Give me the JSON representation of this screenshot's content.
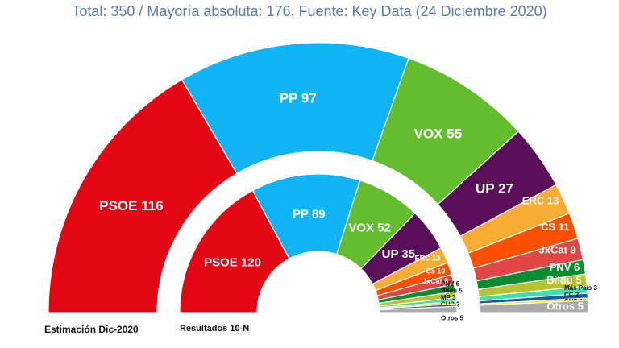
{
  "chart_data": {
    "type": "parliament-donut",
    "title": "Total: 350 / Mayoría absoluta: 176. Fuente: Key Data (24 Diciembre 2020)",
    "total_seats": 350,
    "majority": 176,
    "rings": [
      {
        "name": "Estimación Dic-2020",
        "parties": [
          {
            "label": "PSOE",
            "value": 116,
            "color": "#e30613"
          },
          {
            "label": "PP",
            "value": 97,
            "color": "#0fb4f5"
          },
          {
            "label": "VOX",
            "value": 55,
            "color": "#63be2f"
          },
          {
            "label": "UP",
            "value": 27,
            "color": "#5a0f5a"
          },
          {
            "label": "ERC",
            "value": 13,
            "color": "#f8ac33"
          },
          {
            "label": "CS",
            "value": 11,
            "color": "#fa5000"
          },
          {
            "label": "JxCat",
            "value": 9,
            "color": "#e04646"
          },
          {
            "label": "PNV",
            "value": 6,
            "color": "#0a8c2f"
          },
          {
            "label": "Bildu",
            "value": 5,
            "color": "#b5c42e"
          },
          {
            "label": "Más País",
            "value": 3,
            "color": "#3fe0a8"
          },
          {
            "label": "CC",
            "value": 2,
            "color": "#1a5aa8"
          },
          {
            "label": "CUP",
            "value": 1,
            "color": "#ffe100"
          },
          {
            "label": "Otros",
            "value": 5,
            "color": "#aaaaaa"
          }
        ]
      },
      {
        "name": "Resultados 10-N",
        "parties": [
          {
            "label": "PSOE",
            "value": 120,
            "color": "#e30613"
          },
          {
            "label": "PP",
            "value": 89,
            "color": "#0fb4f5"
          },
          {
            "label": "VOX",
            "value": 52,
            "color": "#63be2f"
          },
          {
            "label": "UP",
            "value": 35,
            "color": "#5a0f5a"
          },
          {
            "label": "ERC",
            "value": 13,
            "color": "#f8ac33"
          },
          {
            "label": "Cs",
            "value": 10,
            "color": "#fa5000"
          },
          {
            "label": "JxCat",
            "value": 8,
            "color": "#e04646"
          },
          {
            "label": "PNV",
            "value": 6,
            "color": "#0a8c2f"
          },
          {
            "label": "Bildu",
            "value": 5,
            "color": "#b5c42e"
          },
          {
            "label": "MP",
            "value": 3,
            "color": "#3fe0a8"
          },
          {
            "label": "CUP",
            "value": 2,
            "color": "#ffe100"
          },
          {
            "label": "CC",
            "value": 2,
            "color": "#1a5aa8"
          },
          {
            "label": "Otros",
            "value": 5,
            "color": "#aaaaaa"
          }
        ]
      }
    ]
  }
}
